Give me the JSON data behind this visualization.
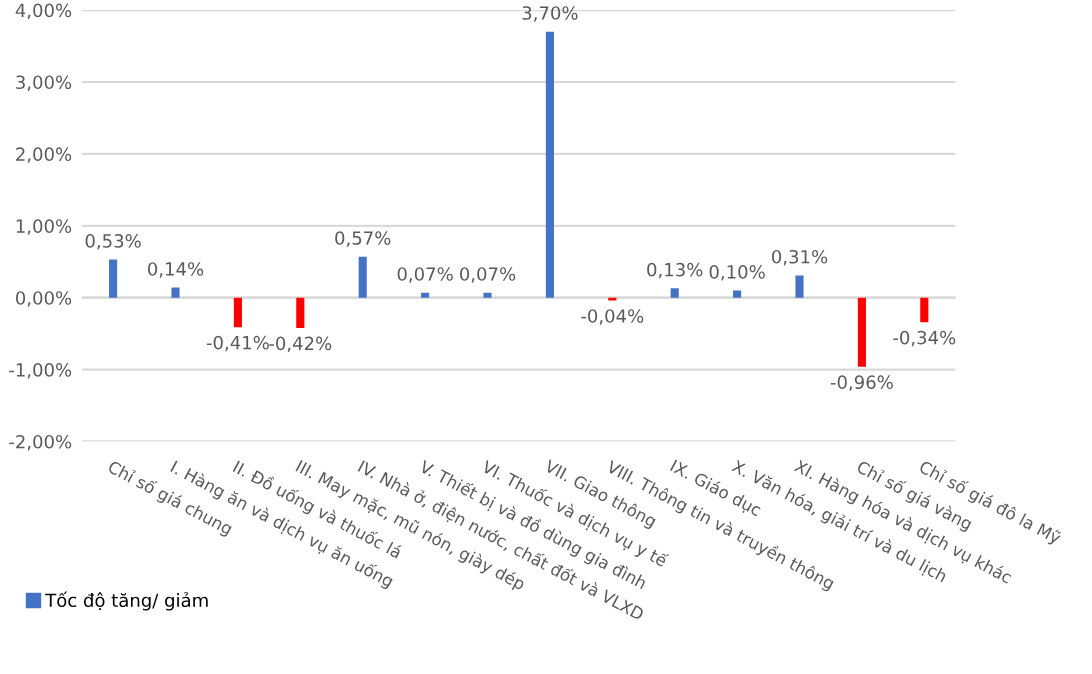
{
  "chart_data": {
    "type": "bar",
    "categories": [
      "Chỉ số giá chung",
      "I. Hàng ăn và dịch vụ ăn uống",
      "II. Đồ uống và thuốc lá",
      "III. May mặc, mũ nón, giày dép",
      "IV. Nhà ở, điện nước, chất đốt và VLXD",
      "V. Thiết bị và đồ dùng gia đình",
      "VI. Thuốc và dịch vụ y tế",
      "VII. Giao thông",
      "VIII. Thông tin và truyền thông",
      "IX. Giáo dục",
      "X. Văn hóa, giải trí và du lịch",
      "XI. Hàng hóa và dịch vụ khác",
      "Chỉ số giá vàng",
      "Chỉ số giá đô la Mỹ"
    ],
    "series": [
      {
        "name": "Tốc độ tăng/ giảm",
        "color": "#4472c4",
        "values": [
          0.53,
          0.14,
          -0.41,
          -0.42,
          0.57,
          0.07,
          0.07,
          3.7,
          -0.04,
          0.13,
          0.1,
          0.31,
          -0.96,
          -0.34
        ],
        "colors": [
          "#4472c4",
          "#4472c4",
          "#ff0000",
          "#ff0000",
          "#4472c4",
          "#4472c4",
          "#4472c4",
          "#4472c4",
          "#ff0000",
          "#4472c4",
          "#4472c4",
          "#4472c4",
          "#ff0000",
          "#ff0000"
        ],
        "value_labels": [
          "0,53%",
          "0,14%",
          "-0,41%",
          "-0,42%",
          "0,57%",
          "0,07%",
          "0,07%",
          "3,70%",
          "-0,04%",
          "0,13%",
          "0,10%",
          "0,31%",
          "-0,96%",
          "-0,34%"
        ]
      }
    ],
    "ylim": [
      -2,
      4
    ],
    "yticks": [
      {
        "value": -2,
        "label": "-2,00%"
      },
      {
        "value": -1,
        "label": "-1,00%"
      },
      {
        "value": 0,
        "label": "0,00%"
      },
      {
        "value": 1,
        "label": "1,00%"
      },
      {
        "value": 2,
        "label": "2,00%"
      },
      {
        "value": 3,
        "label": "3,00%"
      },
      {
        "value": 4,
        "label": "4,00%"
      }
    ],
    "grid": "y",
    "legend": "bottom left"
  }
}
